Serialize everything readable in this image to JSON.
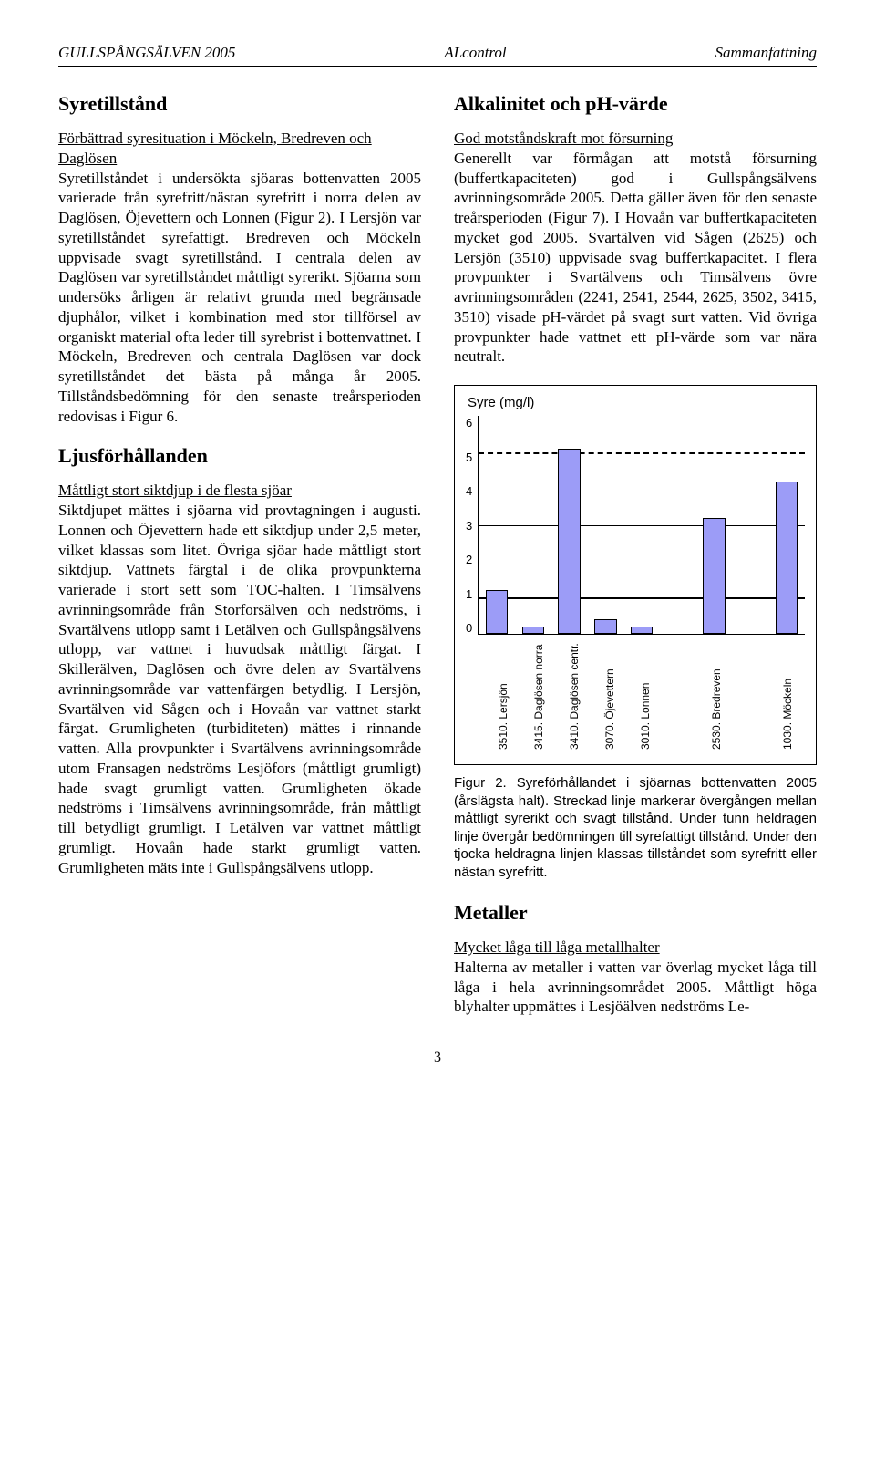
{
  "header": {
    "left": "GULLSPÅNGSÄLVEN 2005",
    "center": "ALcontrol",
    "right": "Sammanfattning"
  },
  "left_col": {
    "h_oxygen": "Syretillstånd",
    "sub_oxygen": "Förbättrad syresituation i Möckeln, Bredreven och Daglösen",
    "p_oxygen": "Syretillståndet i undersökta sjöaras bottenvatten 2005 varierade från syrefritt/nästan syrefritt i norra delen av Daglösen, Öjevettern och Lonnen (Figur 2). I Lersjön var syretillståndet syrefattigt. Bredreven och Möckeln uppvisade svagt syretillstånd. I centrala delen av Daglösen var syretillståndet måttligt syrerikt. Sjöarna som undersöks årligen är relativt grunda med begränsade djuphålor, vilket i kombination med stor tillförsel av organiskt material ofta leder till syrebrist i bottenvattnet. I Möckeln, Bredreven och centrala Daglösen var dock syretillståndet det bästa på många år 2005. Tillståndsbedömning för den senaste treårsperioden redovisas i Figur 6.",
    "h_light": "Ljusförhållanden",
    "sub_light": "Måttligt stort siktdjup i de flesta sjöar",
    "p_light": "Siktdjupet mättes i sjöarna vid provtagningen i augusti. Lonnen och Öjevettern hade ett siktdjup under 2,5 meter, vilket klassas som litet. Övriga sjöar hade måttligt stort siktdjup. Vattnets färgtal i de olika provpunkterna varierade i stort sett som TOC-halten. I Timsälvens avrinningsområde från Storforsälven och nedströms, i Svartälvens utlopp samt i Letälven och Gullspångsälvens utlopp, var vattnet i huvudsak måttligt färgat. I Skillerälven, Daglösen och övre delen av Svartälvens avrinningsområde var vattenfärgen betydlig. I Lersjön, Svartälven vid Sågen och i Hovaån var vattnet starkt färgat. Grumligheten (turbiditeten) mättes i rinnande vatten. Alla provpunkter i Svartälvens avrinningsområde utom Fransagen nedströms Lesjöfors (måttligt grumligt) hade svagt grumligt vatten. Grumligheten ökade nedströms i Timsälvens avrinningsområde, från måttligt till betydligt grumligt. I Letälven var vattnet måttligt grumligt. Hovaån hade starkt grumligt vatten. Grumligheten mäts inte i Gullspångsälvens utlopp."
  },
  "right_col": {
    "h_alk": "Alkalinitet och pH-värde",
    "sub_alk": "God motståndskraft mot försurning",
    "p_alk": "Generellt var förmågan att motstå försurning (buffertkapaciteten) god i Gullspångsälvens avrinningsområde 2005. Detta gäller även för den senaste treårsperioden (Figur 7). I Hovaån var buffertkapaciteten mycket god 2005. Svartälven vid Sågen (2625) och Lersjön (3510) uppvisade svag buffertkapacitet. I flera provpunkter i Svartälvens och Timsälvens övre avrinningsområden (2241, 2541, 2544, 2625, 3502, 3415, 3510) visade pH-värdet på svagt surt vatten. Vid övriga provpunkter hade vattnet ett pH-värde som var nära neutralt.",
    "figure_caption": "Figur 2. Syreförhållandet i sjöarnas bottenvatten 2005 (årslägsta halt). Streckad linje markerar övergången mellan måttligt syrerikt och svagt tillstånd. Under tunn heldragen linje övergår bedömningen till syrefattigt tillstånd. Under den tjocka heldragna linjen klassas tillståndet som syrefritt eller nästan syrefritt.",
    "h_metals": "Metaller",
    "sub_metals": "Mycket låga till låga metallhalter",
    "p_metals": "Halterna av metaller i vatten var överlag mycket låga till låga i hela avrinningsområdet 2005. Måttligt höga blyhalter uppmättes i Lesjöälven nedströms Le-"
  },
  "chart": {
    "type": "bar",
    "title": "Syre (mg/l)",
    "y_max": 6,
    "y_ticks": [
      6,
      5,
      4,
      3,
      2,
      1,
      0
    ],
    "ref_lines": {
      "dashed_at": 5,
      "thin_solid_at": 3,
      "thick_solid_at": 1
    },
    "background_color": "#ffffff",
    "bar_color": "#9c9cf7",
    "bar_border": "#000000",
    "tick_font": 13,
    "label_font": 12,
    "categories": [
      "3510. Lersjön",
      "3415. Daglösen norra",
      "3410. Daglösen centr.",
      "3070. Öjevettern",
      "3010. Lonnen",
      "",
      "2530. Bredreven",
      "",
      "1030. Möckeln"
    ],
    "values": [
      1.2,
      0.2,
      5.1,
      0.4,
      0.2,
      null,
      3.2,
      null,
      4.2
    ]
  },
  "pagenum": "3"
}
